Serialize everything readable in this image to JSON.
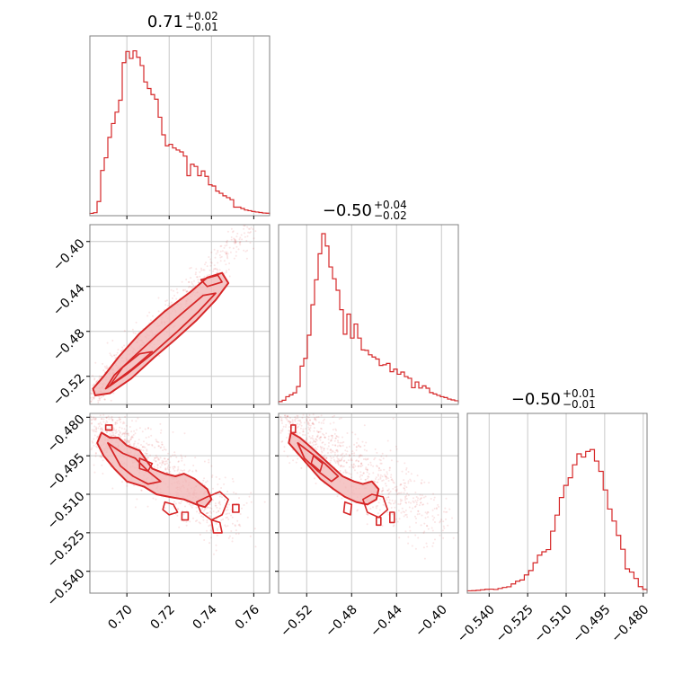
{
  "chart_data": {
    "type": "corner",
    "colors": {
      "series": "#d62728",
      "fill": "#f2b8b8",
      "grid": "#c8c8c8",
      "frame": "#808080"
    },
    "grid": true,
    "parameters": [
      {
        "title": {
          "median": "0.71",
          "plus": "+0.02",
          "minus": "−0.01"
        },
        "range": [
          0.6825,
          0.7675
        ],
        "ticks": [
          {
            "v": 0.7,
            "label": "0.70"
          },
          {
            "v": 0.72,
            "label": "0.72"
          },
          {
            "v": 0.74,
            "label": "0.74"
          },
          {
            "v": 0.76,
            "label": "0.76"
          }
        ]
      },
      {
        "title": {
          "median": "−0.50",
          "plus": "+0.04",
          "minus": "−0.02"
        },
        "range": [
          -0.545,
          -0.385
        ],
        "ticks": [
          {
            "v": -0.52,
            "label": "−0.52"
          },
          {
            "v": -0.48,
            "label": "−0.48"
          },
          {
            "v": -0.44,
            "label": "−0.44"
          },
          {
            "v": -0.4,
            "label": "−0.40"
          }
        ]
      },
      {
        "title": {
          "median": "−0.50",
          "plus": "+0.01",
          "minus": "−0.01"
        },
        "range": [
          -0.5485,
          -0.4785
        ],
        "ticks": [
          {
            "v": -0.54,
            "label": "−0.540"
          },
          {
            "v": -0.525,
            "label": "−0.525"
          },
          {
            "v": -0.51,
            "label": "−0.510"
          },
          {
            "v": -0.495,
            "label": "−0.495"
          },
          {
            "v": -0.48,
            "label": "−0.480"
          }
        ]
      }
    ],
    "histograms": [
      {
        "counts": [
          0.3,
          0.7,
          7.3,
          25.7,
          33.2,
          45.3,
          53.5,
          60.2,
          67.3,
          89.5,
          96.1,
          92.0,
          96.5,
          92.7,
          87.8,
          78.1,
          74.2,
          70.6,
          67.9,
          57.2,
          46.8,
          40.3,
          41.2,
          39.0,
          37.8,
          36.7,
          34.2,
          22.6,
          29.4,
          28.1,
          22.6,
          25.4,
          22.2,
          17.2,
          16.5,
          13.5,
          12.2,
          10.7,
          9.6,
          8.4,
          4.0,
          4.0,
          3.2,
          2.3,
          1.9,
          1.4,
          1.1,
          0.8,
          0.5,
          0.4
        ]
      },
      {
        "counts": [
          0.6,
          1.4,
          3.5,
          4.6,
          5.8,
          9.5,
          21.6,
          26.2,
          39.9,
          57.9,
          72.7,
          88.1,
          100.0,
          92.7,
          80.3,
          73.3,
          66.5,
          55.0,
          40.5,
          52.4,
          38.2,
          46.5,
          38.2,
          31.2,
          30.9,
          28.3,
          27.0,
          25.8,
          22.0,
          22.4,
          23.2,
          18.3,
          19.8,
          16.8,
          18.1,
          15.4,
          14.4,
          8.8,
          12.2,
          8.6,
          9.9,
          8.5,
          5.9,
          5.1,
          4.3,
          3.5,
          3.0,
          2.1,
          1.6,
          1.1
        ]
      },
      {
        "counts": [
          0.3,
          0.4,
          0.6,
          0.9,
          1.2,
          1.3,
          1.1,
          1.7,
          2.3,
          2.7,
          4.4,
          6.0,
          6.7,
          9.7,
          12.3,
          16.9,
          21.4,
          23.4,
          24.7,
          35.6,
          45.1,
          55.5,
          62.7,
          67.2,
          74.9,
          81.4,
          79.5,
          82.8,
          83.9,
          77.1,
          71.0,
          60.0,
          48.7,
          41.6,
          33.1,
          24.9,
          13.3,
          11.4,
          7.6,
          2.8,
          1.2
        ]
      }
    ]
  }
}
